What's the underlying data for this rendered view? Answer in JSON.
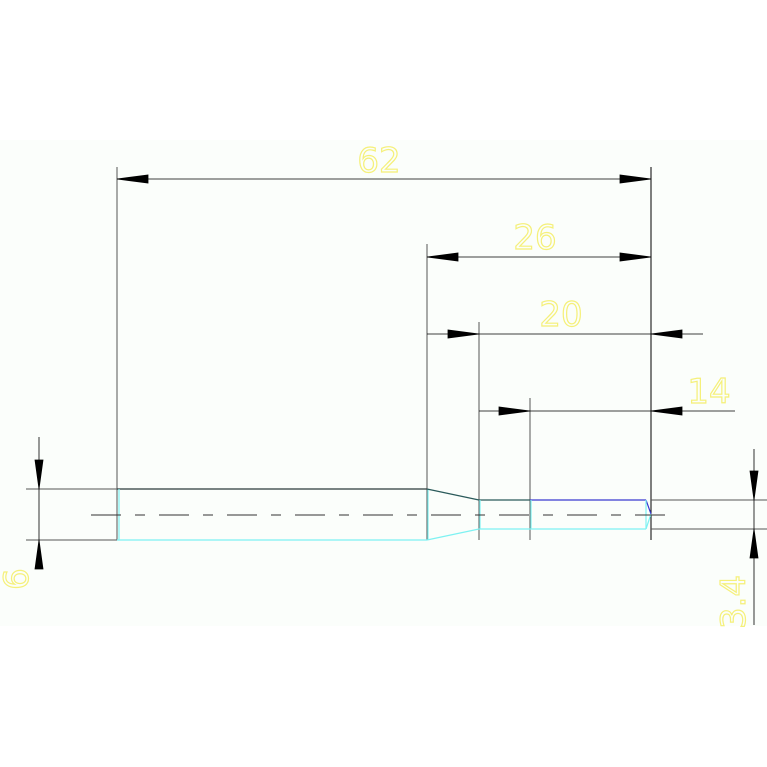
{
  "drawing": {
    "dimensions": {
      "overall_length": "62",
      "step_26": "26",
      "step_20": "20",
      "step_14": "14",
      "diameter_left": "6",
      "diameter_right": "3.4"
    },
    "colors": {
      "background": "#fbfefb",
      "outline": "#2a3a3a",
      "hidden_edge": "#7ef2f2",
      "highlight_edge": "#3a3ad0",
      "dimension_text": "#f5f07a",
      "dimension_line": "#000000"
    }
  }
}
